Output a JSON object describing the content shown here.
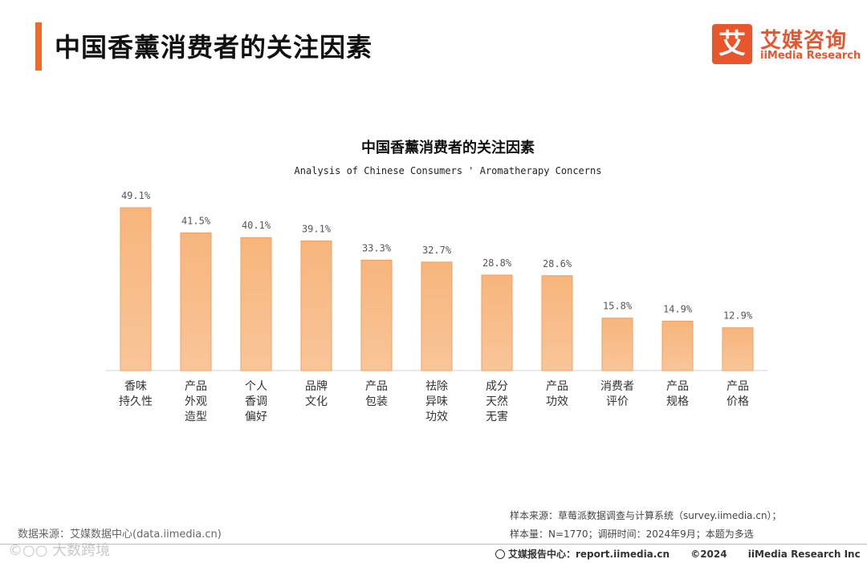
{
  "header": {
    "title": "中国香薰消费者的关注因素",
    "logo_mark": "艾",
    "logo_cn": "艾媒咨询",
    "logo_en": "iiMedia Research"
  },
  "chart_data": {
    "type": "bar",
    "title": "中国香薰消费者的关注因素",
    "subtitle": "Analysis of Chinese Consumers ' Aromatherapy Concerns",
    "categories": [
      [
        "香味",
        "持久性"
      ],
      [
        "产品",
        "外观",
        "造型"
      ],
      [
        "个人",
        "香调",
        "偏好"
      ],
      [
        "品牌",
        "文化"
      ],
      [
        "产品",
        "包装"
      ],
      [
        "祛除",
        "异味",
        "功效"
      ],
      [
        "成分",
        "天然",
        "无害"
      ],
      [
        "产品",
        "功效"
      ],
      [
        "消费者",
        "评价"
      ],
      [
        "产品",
        "规格"
      ],
      [
        "产品",
        "价格"
      ]
    ],
    "values": [
      49.1,
      41.5,
      40.1,
      39.1,
      33.3,
      32.7,
      28.8,
      28.6,
      15.8,
      14.9,
      12.9
    ],
    "value_labels": [
      "49.1%",
      "41.5%",
      "40.1%",
      "39.1%",
      "33.3%",
      "32.7%",
      "28.8%",
      "28.6%",
      "15.8%",
      "14.9%",
      "12.9%"
    ],
    "ylim": [
      0,
      49.1
    ],
    "grid": false,
    "colors": {
      "bar_fill": "#f9c599",
      "bar_fill_top": "#f7b57c",
      "bar_stroke": "#f0a060"
    }
  },
  "sources": {
    "left": "数据来源：艾媒数据中心(data.iimedia.cn)",
    "right_line1": "样本来源：草莓派数据调查与计算系统（survey.iimedia.cn）；",
    "right_line2": "样本量：N=1770；调研时间：2024年9月；本题为多选"
  },
  "watermark": "©○○ 大数跨境",
  "footer": {
    "report_center": "艾媒报告中心：report.iimedia.cn",
    "copyright": "©2024",
    "company": "iiMedia Research  Inc"
  },
  "colors": {
    "accent": "#ec6a2c",
    "brand": "#e8562e"
  }
}
